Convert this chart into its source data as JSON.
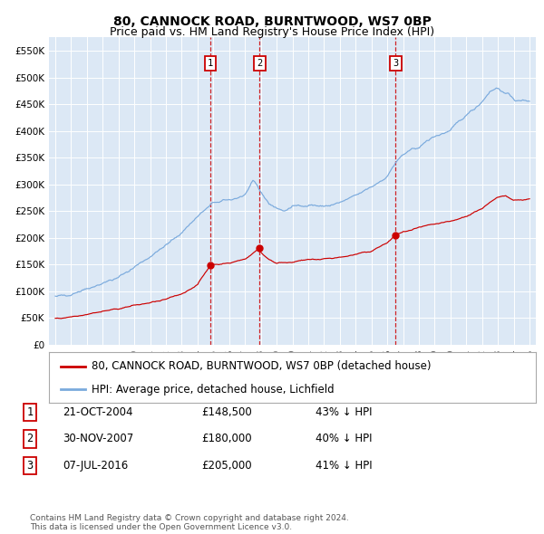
{
  "title": "80, CANNOCK ROAD, BURNTWOOD, WS7 0BP",
  "subtitle": "Price paid vs. HM Land Registry's House Price Index (HPI)",
  "background_color": "#ffffff",
  "plot_bg_color": "#dce8f5",
  "grid_color": "#ffffff",
  "hpi_color": "#7aaadd",
  "price_color": "#cc0000",
  "vline_color": "#cc0000",
  "ylim": [
    0,
    575000
  ],
  "yticks": [
    0,
    50000,
    100000,
    150000,
    200000,
    250000,
    300000,
    350000,
    400000,
    450000,
    500000,
    550000
  ],
  "ytick_labels": [
    "£0",
    "£50K",
    "£100K",
    "£150K",
    "£200K",
    "£250K",
    "£300K",
    "£350K",
    "£400K",
    "£450K",
    "£500K",
    "£550K"
  ],
  "xlim_start": 1994.6,
  "xlim_end": 2025.4,
  "xticks": [
    1995,
    1996,
    1997,
    1998,
    1999,
    2000,
    2001,
    2002,
    2003,
    2004,
    2005,
    2006,
    2007,
    2008,
    2009,
    2010,
    2011,
    2012,
    2013,
    2014,
    2015,
    2016,
    2017,
    2018,
    2019,
    2020,
    2021,
    2022,
    2023,
    2024,
    2025
  ],
  "sale_dates": [
    2004.81,
    2007.92,
    2016.52
  ],
  "sale_prices": [
    148500,
    180000,
    205000
  ],
  "sale_labels": [
    "1",
    "2",
    "3"
  ],
  "legend_entries": [
    "80, CANNOCK ROAD, BURNTWOOD, WS7 0BP (detached house)",
    "HPI: Average price, detached house, Lichfield"
  ],
  "table_rows": [
    [
      "1",
      "21-OCT-2004",
      "£148,500",
      "43% ↓ HPI"
    ],
    [
      "2",
      "30-NOV-2007",
      "£180,000",
      "40% ↓ HPI"
    ],
    [
      "3",
      "07-JUL-2016",
      "£205,000",
      "41% ↓ HPI"
    ]
  ],
  "footnote": "Contains HM Land Registry data © Crown copyright and database right 2024.\nThis data is licensed under the Open Government Licence v3.0.",
  "title_fontsize": 10,
  "subtitle_fontsize": 9,
  "tick_fontsize": 7.5,
  "legend_fontsize": 8.5,
  "table_fontsize": 8.5,
  "footnote_fontsize": 6.5,
  "hpi_waypoints_x": [
    1995,
    1996,
    1997,
    1998,
    1999,
    2000,
    2001,
    2002,
    2003,
    2004,
    2004.81,
    2005,
    2006,
    2007,
    2007.5,
    2008,
    2008.5,
    2009,
    2009.5,
    2010,
    2011,
    2012,
    2013,
    2014,
    2015,
    2016,
    2016.52,
    2017,
    2018,
    2019,
    2020,
    2021,
    2022,
    2022.5,
    2023,
    2023.5,
    2024,
    2024.5,
    2025
  ],
  "hpi_waypoints_y": [
    88000,
    95000,
    105000,
    115000,
    125000,
    145000,
    165000,
    185000,
    210000,
    240000,
    260000,
    265000,
    270000,
    280000,
    305000,
    285000,
    265000,
    255000,
    250000,
    258000,
    262000,
    258000,
    265000,
    278000,
    295000,
    315000,
    340000,
    355000,
    370000,
    390000,
    400000,
    430000,
    455000,
    475000,
    480000,
    470000,
    460000,
    455000,
    458000
  ],
  "price_waypoints_x": [
    1995,
    1996,
    1997,
    1998,
    1999,
    2000,
    2001,
    2002,
    2003,
    2004,
    2004.81,
    2005,
    2006,
    2007,
    2007.92,
    2008,
    2008.5,
    2009,
    2010,
    2011,
    2012,
    2013,
    2014,
    2015,
    2016,
    2016.52,
    2017,
    2018,
    2019,
    2020,
    2021,
    2022,
    2022.5,
    2023,
    2023.5,
    2024,
    2025
  ],
  "price_waypoints_y": [
    48000,
    52000,
    57000,
    62000,
    67000,
    73000,
    78000,
    84000,
    95000,
    112000,
    148500,
    150000,
    152000,
    160000,
    180000,
    172000,
    160000,
    152000,
    155000,
    158000,
    160000,
    163000,
    168000,
    175000,
    190000,
    205000,
    210000,
    218000,
    225000,
    230000,
    240000,
    255000,
    265000,
    275000,
    280000,
    270000,
    272000
  ]
}
